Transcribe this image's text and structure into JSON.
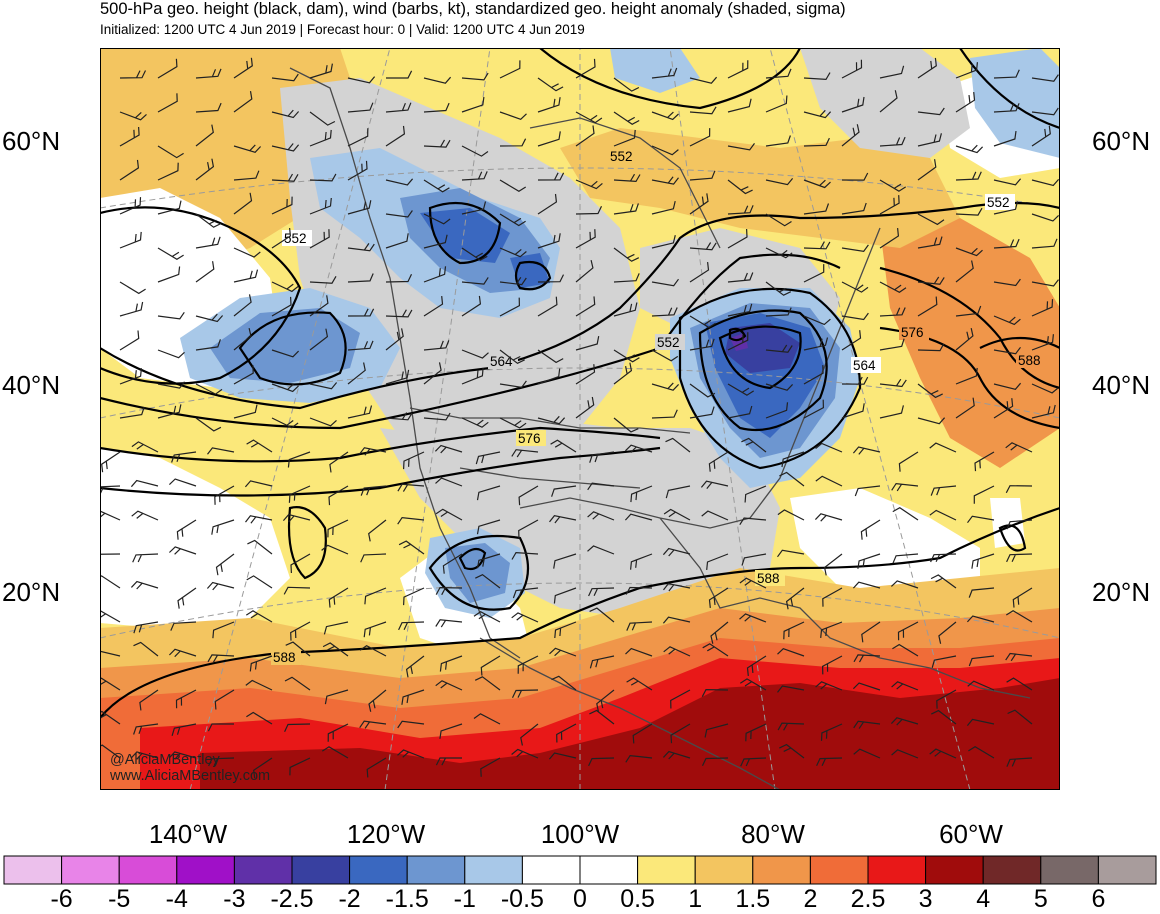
{
  "header": {
    "title": "500-hPa geo. height (black, dam), wind (barbs, kt), standardized geo. height anomaly (shaded, sigma)",
    "subtitle": "Initialized: 1200 UTC 4 Jun 2019 | Forecast hour: 0 | Valid: 1200 UTC 4 Jun 2019"
  },
  "axes": {
    "lat_left": [
      "60°N",
      "40°N",
      "20°N"
    ],
    "lat_right": [
      "60°N",
      "40°N",
      "20°N"
    ],
    "lon": [
      "140°W",
      "120°W",
      "100°W",
      "80°W",
      "60°W"
    ]
  },
  "contour_labels": [
    "552",
    "552",
    "552",
    "552",
    "564",
    "564",
    "576",
    "576",
    "588",
    "588",
    "588"
  ],
  "watermark": {
    "handle": "@AliciaMBentley",
    "url": "www.AliciaMBentley.com"
  },
  "colorbar": {
    "labels": [
      "-6",
      "-5",
      "-4",
      "-3",
      "-2.5",
      "-2",
      "-1.5",
      "-1",
      "-0.5",
      "0",
      "0.5",
      "1",
      "1.5",
      "2",
      "2.5",
      "3",
      "4",
      "5",
      "6"
    ],
    "colors": [
      "#ecc0ec",
      "#e884e8",
      "#d84cd8",
      "#a010c8",
      "#6030a8",
      "#3840a0",
      "#3a68c0",
      "#6d96d0",
      "#a8c8e8",
      "#ffffff",
      "#ffffff",
      "#fbe87a",
      "#f3c560",
      "#f0964a",
      "#f06c38",
      "#e81818",
      "#a00c0c",
      "#702828",
      "#786868",
      "#a89c9c"
    ]
  },
  "map_colors": {
    "ocean_land_gray": "#d3d3d3",
    "border": "#4a4a4a",
    "contour": "#000000"
  }
}
